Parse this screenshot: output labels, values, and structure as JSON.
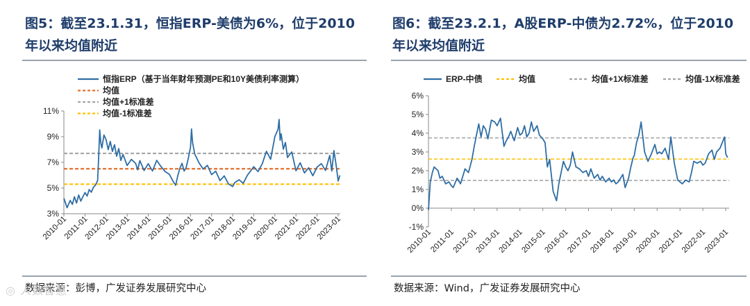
{
  "watermark": "◎ 人数智慧",
  "chart_data": [
    {
      "type": "line",
      "title": "图5：截至23.1.31，恒指ERP-美债为6%，位于2010年以来均值附近",
      "source": "数据来源：彭博，广发证券发展研究中心",
      "y_unit": "%",
      "ylim": [
        3,
        11
      ],
      "yticks": [
        "3%",
        "5%",
        "7%",
        "9%",
        "11%"
      ],
      "ytick_values": [
        3,
        5,
        7,
        9,
        11
      ],
      "x_range": [
        2010.0,
        2023.1
      ],
      "xticks": [
        "2010-01",
        "2011-01",
        "2012-01",
        "2013-01",
        "2014-01",
        "2015-01",
        "2016-01",
        "2017-01",
        "2018-01",
        "2019-01",
        "2020-01",
        "2021-01",
        "2022-01",
        "2023-01"
      ],
      "legend": {
        "position": "top",
        "entries": [
          {
            "label": "恒指ERP（基于当年财年预测PE和10Y美债利率测算）",
            "style": "solid",
            "color": "#2e6da4"
          },
          {
            "label": "均值",
            "style": "dashed",
            "color": "#e2702f"
          },
          {
            "label": "均值+1标准差",
            "style": "dashed",
            "color": "#a5a5a5"
          },
          {
            "label": "均值-1标准差",
            "style": "dashed",
            "color": "#ffc000"
          }
        ]
      },
      "reference_lines": [
        {
          "name": "均值",
          "value": 6.5,
          "color": "#e2702f"
        },
        {
          "name": "均值+1标准差",
          "value": 7.7,
          "color": "#a5a5a5"
        },
        {
          "name": "均值-1标准差",
          "value": 5.3,
          "color": "#ffc000"
        }
      ],
      "series": [
        {
          "name": "恒指ERP",
          "color": "#2e6da4",
          "x": [
            2010.0,
            2010.15,
            2010.3,
            2010.4,
            2010.5,
            2010.6,
            2010.7,
            2010.8,
            2010.9,
            2011.0,
            2011.1,
            2011.2,
            2011.3,
            2011.4,
            2011.5,
            2011.6,
            2011.65,
            2011.7,
            2011.75,
            2011.8,
            2011.9,
            2012.0,
            2012.1,
            2012.2,
            2012.3,
            2012.4,
            2012.5,
            2012.6,
            2012.7,
            2012.8,
            2012.9,
            2013.0,
            2013.2,
            2013.4,
            2013.5,
            2013.6,
            2013.8,
            2014.0,
            2014.2,
            2014.4,
            2014.6,
            2014.8,
            2015.0,
            2015.2,
            2015.3,
            2015.4,
            2015.5,
            2015.6,
            2015.7,
            2015.8,
            2015.9,
            2016.0,
            2016.05,
            2016.1,
            2016.2,
            2016.4,
            2016.6,
            2016.8,
            2017.0,
            2017.2,
            2017.4,
            2017.6,
            2017.8,
            2018.0,
            2018.1,
            2018.3,
            2018.5,
            2018.7,
            2018.9,
            2019.0,
            2019.2,
            2019.4,
            2019.6,
            2019.8,
            2020.0,
            2020.15,
            2020.2,
            2020.25,
            2020.3,
            2020.4,
            2020.5,
            2020.6,
            2020.8,
            2021.0,
            2021.2,
            2021.4,
            2021.6,
            2021.8,
            2022.0,
            2022.2,
            2022.4,
            2022.6,
            2022.7,
            2022.8,
            2022.9,
            2023.0,
            2023.08
          ],
          "y": [
            4.2,
            3.5,
            4.1,
            3.8,
            4.4,
            3.9,
            4.5,
            4.0,
            4.3,
            4.6,
            4.3,
            4.8,
            4.6,
            5.0,
            5.2,
            5.6,
            7.5,
            9.6,
            8.6,
            8.2,
            9.2,
            8.8,
            8.0,
            8.6,
            7.8,
            8.3,
            7.4,
            8.0,
            7.1,
            7.6,
            7.2,
            6.8,
            7.3,
            7.0,
            6.5,
            7.2,
            6.4,
            6.9,
            6.3,
            7.1,
            6.6,
            6.2,
            6.0,
            5.4,
            5.2,
            6.0,
            6.6,
            7.0,
            6.4,
            6.7,
            7.4,
            8.2,
            9.6,
            8.5,
            7.6,
            6.9,
            6.4,
            6.7,
            6.0,
            6.3,
            5.6,
            6.0,
            5.4,
            5.2,
            5.5,
            5.7,
            5.4,
            6.0,
            6.4,
            6.6,
            6.2,
            6.8,
            7.8,
            7.2,
            9.0,
            9.6,
            10.4,
            8.8,
            9.3,
            8.1,
            8.6,
            7.4,
            7.8,
            6.3,
            6.9,
            6.1,
            6.5,
            5.9,
            6.6,
            6.9,
            6.4,
            7.6,
            6.4,
            8.0,
            6.9,
            5.6,
            6.0
          ]
        }
      ]
    },
    {
      "type": "line",
      "title": "图6：截至23.2.1，A股ERP-中债为2.72%，位于2010年以来均值附近",
      "source": "数据来源：Wind，广发证券发展研究中心",
      "y_unit": "%",
      "ylim": [
        -1,
        6
      ],
      "yticks": [
        "-1%",
        "0%",
        "1%",
        "2%",
        "3%",
        "4%",
        "5%",
        "6%"
      ],
      "ytick_values": [
        -1,
        0,
        1,
        2,
        3,
        4,
        5,
        6
      ],
      "x_range": [
        2010.0,
        2023.15
      ],
      "xticks": [
        "2010-01",
        "2011-01",
        "2012-01",
        "2013-01",
        "2014-01",
        "2015-01",
        "2016-01",
        "2017-01",
        "2018-01",
        "2019-01",
        "2020-01",
        "2021-01",
        "2022-01",
        "2023-01"
      ],
      "legend": {
        "position": "top",
        "entries": [
          {
            "label": "ERP-中债",
            "style": "solid",
            "color": "#2e6da4"
          },
          {
            "label": "均值",
            "style": "dashed",
            "color": "#ffc000"
          },
          {
            "label": "均值+1X标准差",
            "style": "dashed",
            "color": "#a5a5a5"
          },
          {
            "label": "均值-1X标准差",
            "style": "dashed",
            "color": "#a5a5a5"
          }
        ]
      },
      "reference_lines": [
        {
          "name": "均值",
          "value": 2.62,
          "color": "#ffc000"
        },
        {
          "name": "均值+1X标准差",
          "value": 3.75,
          "color": "#a5a5a5"
        },
        {
          "name": "均值-1X标准差",
          "value": 1.48,
          "color": "#a5a5a5"
        }
      ],
      "series": [
        {
          "name": "ERP-中债",
          "color": "#2e6da4",
          "x": [
            2010.0,
            2010.08,
            2010.17,
            2010.25,
            2010.42,
            2010.5,
            2010.6,
            2010.75,
            2010.9,
            2011.0,
            2011.08,
            2011.25,
            2011.4,
            2011.6,
            2011.75,
            2011.9,
            2012.0,
            2012.1,
            2012.2,
            2012.3,
            2012.4,
            2012.5,
            2012.6,
            2012.75,
            2012.9,
            2013.0,
            2013.15,
            2013.3,
            2013.4,
            2013.5,
            2013.6,
            2013.75,
            2013.9,
            2014.0,
            2014.1,
            2014.2,
            2014.3,
            2014.4,
            2014.5,
            2014.6,
            2014.75,
            2014.85,
            2015.0,
            2015.1,
            2015.2,
            2015.3,
            2015.45,
            2015.6,
            2015.7,
            2015.8,
            2015.9,
            2016.0,
            2016.1,
            2016.2,
            2016.3,
            2016.45,
            2016.6,
            2016.75,
            2016.9,
            2017.0,
            2017.1,
            2017.25,
            2017.4,
            2017.5,
            2017.6,
            2017.75,
            2017.9,
            2018.0,
            2018.1,
            2018.2,
            2018.3,
            2018.5,
            2018.6,
            2018.75,
            2018.85,
            2018.95,
            2019.0,
            2019.1,
            2019.2,
            2019.3,
            2019.45,
            2019.6,
            2019.75,
            2019.9,
            2020.0,
            2020.1,
            2020.2,
            2020.35,
            2020.5,
            2020.6,
            2020.75,
            2020.9,
            2021.0,
            2021.1,
            2021.25,
            2021.4,
            2021.5,
            2021.6,
            2021.75,
            2021.9,
            2022.0,
            2022.1,
            2022.25,
            2022.4,
            2022.5,
            2022.6,
            2022.75,
            2022.85,
            2022.95,
            2023.0,
            2023.08
          ],
          "y": [
            -0.1,
            1.4,
            1.9,
            2.2,
            2.0,
            1.6,
            1.7,
            1.3,
            1.4,
            1.2,
            1.1,
            1.6,
            1.3,
            2.1,
            1.9,
            2.6,
            3.3,
            3.9,
            4.5,
            3.8,
            4.4,
            4.2,
            3.7,
            4.7,
            4.6,
            4.4,
            4.8,
            3.3,
            3.6,
            3.8,
            4.1,
            3.6,
            4.3,
            3.9,
            4.0,
            4.4,
            3.8,
            4.0,
            4.6,
            4.1,
            4.4,
            3.9,
            3.7,
            3.5,
            2.2,
            2.6,
            0.9,
            0.4,
            1.3,
            1.9,
            2.5,
            2.2,
            2.0,
            2.3,
            3.0,
            2.2,
            2.1,
            1.9,
            2.0,
            1.7,
            2.1,
            1.6,
            1.8,
            1.5,
            1.7,
            1.4,
            1.6,
            1.4,
            1.5,
            1.3,
            1.4,
            1.8,
            1.1,
            1.6,
            2.2,
            2.7,
            2.8,
            3.5,
            3.9,
            4.6,
            3.0,
            2.5,
            2.9,
            3.4,
            2.9,
            3.0,
            2.9,
            3.2,
            2.6,
            3.8,
            2.4,
            1.5,
            1.4,
            1.3,
            1.5,
            1.4,
            1.9,
            2.5,
            2.4,
            2.5,
            2.3,
            2.4,
            2.9,
            3.1,
            2.6,
            3.0,
            3.2,
            3.5,
            3.8,
            2.9,
            2.7
          ]
        }
      ]
    }
  ]
}
